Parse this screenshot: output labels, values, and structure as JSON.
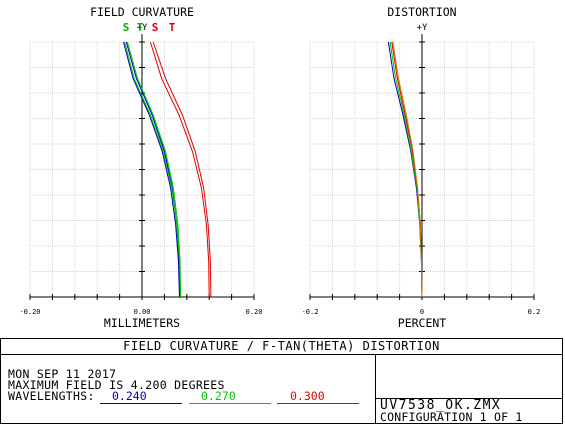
{
  "chart_data": [
    {
      "type": "line",
      "title": "FIELD CURVATURE",
      "xlabel": "MILLIMETERS",
      "y_axis_label": "+Y",
      "xlim": [
        -0.2,
        0.2
      ],
      "ylim": [
        0,
        4.2
      ],
      "x_tick_labels": [
        "-0.20",
        "0.00",
        "0.20"
      ],
      "legend": [
        {
          "label": "S",
          "color": "#00b000"
        },
        {
          "label": "T",
          "color": "#00b000"
        },
        {
          "label": "S",
          "color": "#e00000"
        },
        {
          "label": "T",
          "color": "#e00000"
        }
      ],
      "series": [
        {
          "name": "S",
          "wavelength": "0.240",
          "color": "#0000c8",
          "points": [
            [
              0.067,
              0
            ],
            [
              0.066,
              0.6
            ],
            [
              0.062,
              1.2
            ],
            [
              0.054,
              1.8
            ],
            [
              0.04,
              2.4
            ],
            [
              0.018,
              3.0
            ],
            [
              -0.01,
              3.6
            ],
            [
              -0.028,
              4.2
            ]
          ]
        },
        {
          "name": "T",
          "wavelength": "0.240",
          "color": "#0000c8",
          "points": [
            [
              0.067,
              0
            ],
            [
              0.065,
              0.6
            ],
            [
              0.06,
              1.2
            ],
            [
              0.051,
              1.8
            ],
            [
              0.036,
              2.4
            ],
            [
              0.013,
              3.0
            ],
            [
              -0.016,
              3.6
            ],
            [
              -0.033,
              4.2
            ]
          ]
        },
        {
          "name": "S",
          "wavelength": "0.270",
          "color": "#00c800",
          "points": [
            [
              0.069,
              0
            ],
            [
              0.068,
              0.6
            ],
            [
              0.064,
              1.2
            ],
            [
              0.056,
              1.8
            ],
            [
              0.042,
              2.4
            ],
            [
              0.02,
              3.0
            ],
            [
              -0.008,
              3.6
            ],
            [
              -0.026,
              4.2
            ]
          ]
        },
        {
          "name": "T",
          "wavelength": "0.270",
          "color": "#00c800",
          "points": [
            [
              0.069,
              0
            ],
            [
              0.067,
              0.6
            ],
            [
              0.062,
              1.2
            ],
            [
              0.053,
              1.8
            ],
            [
              0.038,
              2.4
            ],
            [
              0.015,
              3.0
            ],
            [
              -0.014,
              3.6
            ],
            [
              -0.031,
              4.2
            ]
          ]
        },
        {
          "name": "S",
          "wavelength": "0.300",
          "color": "#e00000",
          "points": [
            [
              0.12,
              0
            ],
            [
              0.119,
              0.6
            ],
            [
              0.115,
              1.2
            ],
            [
              0.106,
              1.8
            ],
            [
              0.09,
              2.4
            ],
            [
              0.066,
              3.0
            ],
            [
              0.035,
              3.6
            ],
            [
              0.015,
              4.2
            ]
          ]
        },
        {
          "name": "T",
          "wavelength": "0.300",
          "color": "#e00000",
          "points": [
            [
              0.123,
              0
            ],
            [
              0.122,
              0.6
            ],
            [
              0.118,
              1.2
            ],
            [
              0.11,
              1.8
            ],
            [
              0.095,
              2.4
            ],
            [
              0.072,
              3.0
            ],
            [
              0.042,
              3.6
            ],
            [
              0.02,
              4.2
            ]
          ]
        }
      ]
    },
    {
      "type": "line",
      "title": "DISTORTION",
      "xlabel": "PERCENT",
      "y_axis_label": "+Y",
      "xlim": [
        -0.2,
        0.2
      ],
      "ylim": [
        0,
        4.2
      ],
      "x_tick_labels": [
        "-0.2",
        "0",
        "0.2"
      ],
      "series": [
        {
          "wavelength": "0.240",
          "color": "#0000c8",
          "points": [
            [
              0,
              0
            ],
            [
              -0.001,
              0.6
            ],
            [
              -0.004,
              1.2
            ],
            [
              -0.01,
              1.8
            ],
            [
              -0.02,
              2.4
            ],
            [
              -0.034,
              3.0
            ],
            [
              -0.05,
              3.6
            ],
            [
              -0.06,
              4.2
            ]
          ]
        },
        {
          "wavelength": "0.270",
          "color": "#00c800",
          "points": [
            [
              0,
              0
            ],
            [
              -0.001,
              0.6
            ],
            [
              -0.004,
              1.2
            ],
            [
              -0.009,
              1.8
            ],
            [
              -0.019,
              2.4
            ],
            [
              -0.032,
              3.0
            ],
            [
              -0.047,
              3.6
            ],
            [
              -0.057,
              4.2
            ]
          ]
        },
        {
          "wavelength": "0.300",
          "color": "#e00000",
          "points": [
            [
              0,
              0
            ],
            [
              -0.001,
              0.6
            ],
            [
              -0.003,
              1.2
            ],
            [
              -0.008,
              1.8
            ],
            [
              -0.017,
              2.4
            ],
            [
              -0.03,
              3.0
            ],
            [
              -0.044,
              3.6
            ],
            [
              -0.054,
              4.2
            ]
          ]
        },
        {
          "wavelength": "",
          "color": "#c87800",
          "points": [
            [
              0,
              0
            ],
            [
              -0.001,
              0.6
            ],
            [
              -0.003,
              1.2
            ],
            [
              -0.008,
              1.8
            ],
            [
              -0.016,
              2.4
            ],
            [
              -0.028,
              3.0
            ],
            [
              -0.042,
              3.6
            ],
            [
              -0.052,
              4.2
            ]
          ]
        }
      ]
    }
  ],
  "info": {
    "title": "FIELD CURVATURE / F-TAN(THETA) DISTORTION",
    "date": "MON SEP 11 2017",
    "max_field": "MAXIMUM FIELD IS 4.200 DEGREES",
    "wavelengths_label": "WAVELENGTHS:",
    "wavelengths": [
      {
        "value": "0.240",
        "color": "#0000c8"
      },
      {
        "value": "0.270",
        "color": "#00c800"
      },
      {
        "value": "0.300",
        "color": "#e00000"
      }
    ],
    "filename": "UV7538_OK.ZMX",
    "configuration": "CONFIGURATION 1 OF 1"
  }
}
